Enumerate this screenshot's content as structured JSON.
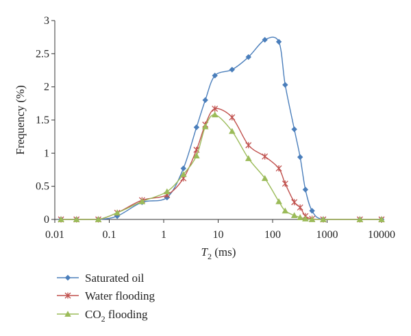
{
  "chart_data": {
    "type": "line",
    "x_scale": "log",
    "xlim": [
      0.01,
      10000
    ],
    "ylim": [
      0,
      3
    ],
    "xlabel": {
      "italic": "T",
      "sub": "2",
      "rest": " (ms)"
    },
    "ylabel": "Frequency (%)",
    "x_ticks": [
      "0.01",
      "0.1",
      "1",
      "10",
      "100",
      "1000",
      "10000"
    ],
    "x_tick_values": [
      0.01,
      0.1,
      1,
      10,
      100,
      1000,
      10000
    ],
    "y_ticks": [
      "0",
      "0.5",
      "1",
      "1.5",
      "2",
      "2.5",
      "3"
    ],
    "y_tick_values": [
      0,
      0.5,
      1,
      1.5,
      2,
      2.5,
      3
    ],
    "grid": false,
    "legend_position": "bottom-left",
    "series": [
      {
        "name": "Saturated oil",
        "color": "#4a7ebb",
        "marker": "diamond",
        "x": [
          0.013,
          0.025,
          0.063,
          0.14,
          0.4,
          1.15,
          2.3,
          4,
          5.8,
          8.7,
          18,
          36,
          72,
          130,
          170,
          250,
          320,
          400,
          530,
          850,
          4000,
          10000
        ],
        "y": [
          0,
          0,
          0,
          0.05,
          0.26,
          0.33,
          0.77,
          1.39,
          1.8,
          2.17,
          2.26,
          2.45,
          2.71,
          2.68,
          2.03,
          1.36,
          0.94,
          0.45,
          0.13,
          0,
          0,
          0
        ]
      },
      {
        "name": "Water flooding",
        "color": "#c0504d",
        "marker": "star",
        "x": [
          0.013,
          0.025,
          0.063,
          0.14,
          0.4,
          1.15,
          2.3,
          4,
          5.8,
          8.7,
          18,
          36,
          72,
          130,
          170,
          250,
          320,
          400,
          530,
          850,
          4000,
          10000
        ],
        "y": [
          0,
          0,
          0,
          0.1,
          0.29,
          0.37,
          0.62,
          1.05,
          1.43,
          1.67,
          1.54,
          1.12,
          0.95,
          0.77,
          0.54,
          0.26,
          0.18,
          0.05,
          0.01,
          0,
          0,
          0
        ]
      },
      {
        "name": "CO2 flooding",
        "color": "#9bbb59",
        "marker": "triangle",
        "x": [
          0.013,
          0.025,
          0.063,
          0.14,
          0.4,
          1.15,
          2.3,
          4,
          5.8,
          8.7,
          18,
          36,
          72,
          130,
          170,
          250,
          320,
          400,
          530,
          850,
          4000,
          10000
        ],
        "y": [
          0,
          0,
          0,
          0.1,
          0.27,
          0.42,
          0.68,
          0.96,
          1.4,
          1.58,
          1.33,
          0.92,
          0.62,
          0.27,
          0.13,
          0.06,
          0.03,
          0.01,
          0,
          0,
          0,
          0
        ]
      }
    ],
    "legend": [
      {
        "text": "Saturated oil"
      },
      {
        "text": "Water flooding"
      },
      {
        "text": "CO",
        "sub": "2",
        "rest": " flooding"
      }
    ]
  }
}
